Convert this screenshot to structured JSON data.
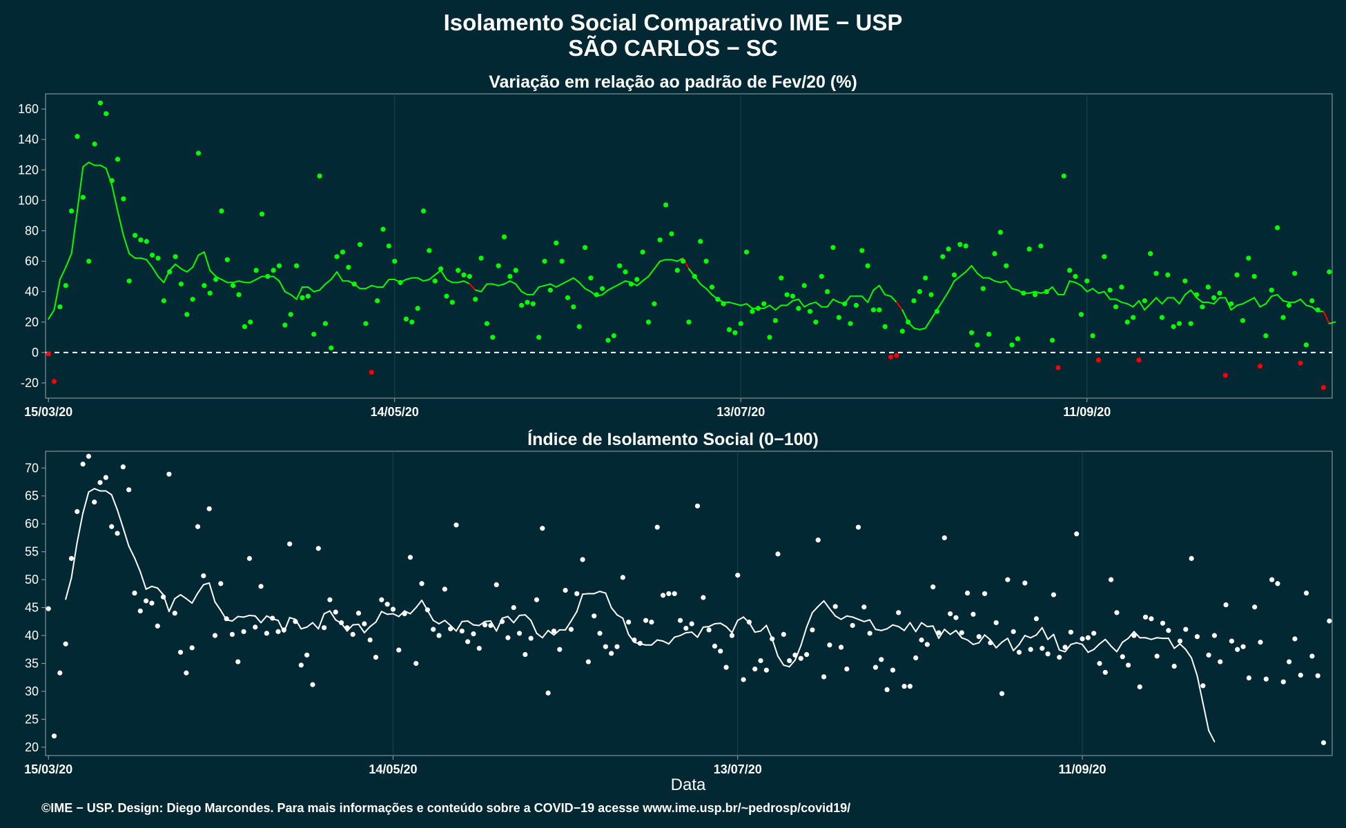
{
  "titles": {
    "main": "Isolamento Social Comparativo IME − USP",
    "location": "SÃO CARLOS − SC",
    "xlabel": "Data",
    "footer": "©IME − USP. Design: Diego Marcondes. Para mais informações e conteúdo sobre a COVID−19 acesse www.ime.usp.br/~pedrosp/covid19/"
  },
  "colors": {
    "background": "#022834",
    "positive": "#00ff00",
    "negative": "#ff0000",
    "index": "#ffffff",
    "zero_line": "#ffffff"
  },
  "chart_data": [
    {
      "type": "scatter",
      "title": "Variação em relação ao padrão de Fev/20 (%)",
      "xlabel": "",
      "ylabel": "",
      "x_start": "15/03/20",
      "x_end": "11/10/20",
      "xtick_labels": [
        "15/03/20",
        "14/05/20",
        "13/07/20",
        "11/09/20"
      ],
      "xtick_days": [
        0,
        60,
        120,
        180
      ],
      "ylim": [
        -30,
        170
      ],
      "yticks": [
        -20,
        0,
        20,
        40,
        60,
        80,
        100,
        120,
        140,
        160
      ],
      "zero_line": true,
      "grid": true,
      "series": [
        {
          "kind": "points",
          "values": [
            -1,
            -19,
            30,
            44,
            93,
            142,
            102,
            60,
            137,
            164,
            157,
            113,
            127,
            101,
            47,
            77,
            74,
            73,
            64,
            62,
            34,
            53,
            63,
            45,
            25,
            35,
            131,
            44,
            39,
            48,
            93,
            61,
            44,
            38,
            17,
            20,
            54,
            91,
            50,
            54,
            57,
            18,
            25,
            57,
            36,
            37,
            12,
            116,
            19,
            3,
            63,
            66,
            56,
            45,
            71,
            19,
            -13,
            34,
            81,
            70,
            60,
            46,
            22,
            20,
            29,
            93,
            67,
            47,
            55,
            37,
            33,
            54,
            51,
            50,
            35,
            62,
            19,
            10,
            57,
            76,
            50,
            54,
            31,
            33,
            32,
            10,
            60,
            41,
            72,
            60,
            36,
            30,
            17,
            69,
            49,
            38,
            42,
            8,
            11,
            57,
            53,
            45,
            48,
            66,
            20,
            32,
            74,
            97,
            78,
            54,
            60,
            20,
            50,
            73,
            60,
            43,
            35,
            32,
            15,
            13,
            19,
            66,
            27,
            29,
            32,
            10,
            21,
            49,
            38,
            37,
            29,
            44,
            27,
            20,
            50,
            40,
            69,
            23,
            32,
            19,
            31,
            67,
            57,
            28,
            28,
            17,
            -3,
            -2,
            14,
            20,
            34,
            40,
            49,
            38,
            27,
            63,
            68,
            51,
            71,
            70,
            13,
            5,
            42,
            12,
            65,
            79,
            57,
            5,
            9,
            39,
            68,
            38,
            70,
            40,
            8,
            -10,
            116,
            54,
            50,
            25,
            47,
            11,
            -5,
            63,
            41,
            30,
            43,
            20,
            23,
            -5,
            34,
            65,
            52,
            23,
            51,
            17,
            19,
            47,
            19,
            38,
            30,
            43,
            36,
            39,
            -15,
            32,
            51,
            21,
            62,
            50,
            -9,
            11,
            41,
            82,
            23,
            31,
            52,
            -7,
            5,
            34,
            28,
            -23,
            53
          ]
        },
        {
          "kind": "rolling_mean",
          "values": [
            22,
            28,
            48,
            56,
            65,
            93,
            122,
            125,
            123,
            123,
            121,
            110,
            93,
            77,
            65,
            62,
            62,
            61,
            56,
            50,
            46,
            54,
            58,
            55,
            53,
            56,
            64,
            66,
            54,
            50,
            48,
            46,
            46,
            47,
            46,
            46,
            48,
            50,
            50,
            50,
            47,
            40,
            38,
            35,
            43,
            43,
            40,
            41,
            45,
            48,
            53,
            47,
            47,
            45,
            42,
            42,
            44,
            43,
            43,
            48,
            48,
            46,
            48,
            49,
            49,
            47,
            48,
            51,
            54,
            48,
            46,
            46,
            47,
            45,
            41,
            40,
            45,
            45,
            44,
            45,
            47,
            45,
            40,
            38,
            38,
            43,
            44,
            45,
            43,
            45,
            47,
            49,
            46,
            42,
            40,
            37,
            38,
            41,
            43,
            45,
            47,
            46,
            44,
            47,
            50,
            55,
            60,
            61,
            61,
            60,
            62,
            55,
            50,
            45,
            42,
            38,
            35,
            33,
            33,
            32,
            31,
            32,
            29,
            29,
            29,
            31,
            28,
            31,
            31,
            34,
            35,
            30,
            32,
            33,
            30,
            30,
            35,
            33,
            32,
            37,
            37,
            37,
            33,
            41,
            44,
            38,
            37,
            33,
            28,
            20,
            16,
            15,
            16,
            22,
            28,
            34,
            40,
            47,
            50,
            53,
            57,
            52,
            49,
            49,
            47,
            46,
            47,
            42,
            41,
            39,
            39,
            40,
            39,
            40,
            43,
            38,
            38,
            47,
            46,
            44,
            40,
            42,
            39,
            40,
            35,
            35,
            33,
            32,
            30,
            34,
            28,
            32,
            36,
            32,
            36,
            36,
            32,
            38,
            41,
            36,
            33,
            33,
            32,
            36,
            36,
            28,
            31,
            32,
            34,
            36,
            30,
            32,
            37,
            38,
            34,
            33,
            33,
            35,
            31,
            30,
            27,
            27,
            19,
            20
          ]
        }
      ]
    },
    {
      "type": "scatter",
      "title": "Índice de Isolamento Social (0−100)",
      "xlabel": "Data",
      "ylabel": "",
      "x_start": "15/03/20",
      "x_end": "11/10/20",
      "xtick_labels": [
        "15/03/20",
        "14/05/20",
        "13/07/20",
        "11/09/20"
      ],
      "xtick_days": [
        0,
        60,
        120,
        180
      ],
      "ylim": [
        18.5,
        73
      ],
      "yticks": [
        20,
        25,
        30,
        35,
        40,
        45,
        50,
        55,
        60,
        65,
        70
      ],
      "grid": true,
      "series": [
        {
          "kind": "points",
          "values": [
            44.8,
            22,
            33.3,
            38.5,
            53.8,
            62.2,
            70.7,
            72.1,
            63.9,
            67.4,
            68.3,
            59.5,
            58.3,
            70.2,
            66.1,
            47.6,
            44.4,
            46.2,
            45.8,
            41.7,
            46.9,
            68.9,
            44.0,
            37.0,
            33.3,
            37.8,
            59.5,
            50.7,
            62.7,
            40.0,
            49.3,
            43.0,
            40.2,
            35.3,
            40.7,
            53.8,
            41.5,
            48.8,
            40.4,
            43.1,
            40.7,
            41.0,
            56.4,
            42.5,
            34.7,
            36.5,
            31.2,
            55.6,
            41.4,
            46.4,
            44.2,
            42.3,
            41.4,
            40.2,
            44.0,
            42.1,
            39.2,
            36.1,
            46.4,
            45.6,
            44.7,
            37.4,
            43.9,
            54.0,
            35.0,
            49.3,
            44.6,
            41.1,
            40.0,
            48.3,
            41.2,
            59.8,
            40.8,
            38.9,
            40.3,
            37.7,
            41.9,
            41.8,
            49.1,
            42.5,
            39.6,
            45.0,
            40.4,
            36.6,
            39.5,
            46.4,
            59.2,
            29.7,
            40.8,
            37.5,
            48.1,
            41.1,
            47.5,
            53.6,
            35.3,
            43.5,
            40.4,
            38.0,
            36.8,
            38.0,
            50.4,
            42.4,
            39.2,
            38.6,
            42.7,
            42.4,
            59.4,
            47.2,
            47.5,
            47.5,
            42.7,
            41.3,
            42.1,
            63.2,
            46.8,
            41.0,
            38.1,
            37.2,
            34.3,
            40.0,
            50.8,
            32.1,
            42.4,
            34.0,
            35.5,
            33.8,
            39.4,
            54.6,
            40.2,
            35.5,
            36.5,
            35.9,
            36.6,
            41.0,
            57.1,
            32.6,
            38.3,
            45.2,
            37.9,
            34.0,
            41.8,
            59.4,
            45.1,
            40.4,
            34.3,
            35.7,
            30.3,
            33.8,
            44.1,
            30.9,
            30.9,
            36.0,
            39.2,
            38.4,
            48.7,
            40.5,
            57.5,
            43.9,
            43.2,
            40.5,
            47.6,
            43.8,
            39.8,
            47.5,
            38.7,
            42.3,
            29.6,
            50.0,
            40.7,
            37.0,
            49.4,
            37.5,
            43.0,
            37.7,
            36.7,
            47.3,
            36.1,
            37.9,
            40.6,
            58.2,
            39.4,
            39.6,
            40.4,
            35.0,
            33.4,
            50.0,
            44.1,
            36.2,
            34.7,
            40.0,
            30.8,
            43.3,
            43.0,
            36.3,
            42.2,
            40.9,
            34.5,
            39.0,
            41.1,
            53.8,
            39.8,
            31.0,
            36.5,
            40.0,
            35.3,
            45.5,
            39.0,
            37.5,
            38.0,
            32.4,
            45.1,
            38.8,
            32.2,
            50.0,
            49.3,
            31.7,
            35.3,
            39.4,
            32.9,
            47.6,
            36.3,
            32.8,
            20.8,
            42.6
          ]
        },
        {
          "kind": "rolling_mean",
          "start_day": 3,
          "values": [
            46.5,
            50.3,
            56.7,
            61.9,
            65.7,
            66.3,
            65.9,
            65.9,
            65.2,
            62.5,
            59.3,
            56.0,
            53.9,
            51.4,
            48.3,
            48.8,
            48.5,
            47.3,
            44.3,
            46.6,
            47.3,
            46.6,
            45.8,
            47.6,
            49.1,
            49.4,
            46.0,
            44.5,
            42.8,
            42.6,
            43.4,
            43.3,
            43.6,
            43.5,
            42.3,
            43.5,
            43.0,
            42.7,
            40.6,
            43.2,
            42.9,
            41.2,
            41.5,
            42.3,
            41.2,
            43.9,
            44.4,
            42.8,
            42.2,
            40.8,
            41.9,
            42.0,
            40.5,
            41.6,
            42.4,
            44.3,
            43.8,
            43.9,
            43.4,
            44.4,
            43.9,
            45.0,
            46.3,
            44.5,
            42.7,
            42.1,
            42.7,
            41.8,
            40.8,
            42.5,
            42.6,
            41.9,
            41.8,
            42.5,
            42.6,
            40.8,
            43.1,
            43.4,
            42.3,
            43.6,
            43.7,
            42.7,
            40.4,
            39.6,
            40.9,
            40.1,
            41.0,
            41.0,
            42.6,
            44.3,
            47.4,
            47.5,
            47.5,
            47.9,
            47.6,
            45.0,
            43.7,
            43.1,
            40.2,
            38.8,
            38.5,
            38.3,
            38.3,
            39.2,
            39.0,
            38.5,
            39.7,
            40.0,
            40.5,
            40.6,
            39.7,
            41.5,
            41.6,
            42.1,
            42.2,
            41.6,
            40.5,
            42.7,
            43.3,
            42.3,
            40.6,
            40.8,
            41.8,
            39.4,
            36.3,
            34.7,
            34.4,
            35.6,
            38.2,
            41.5,
            44.1,
            45.2,
            46.2,
            44.8,
            43.5,
            42.9,
            43.5,
            43.3,
            42.9,
            42.5,
            42.8,
            41.1,
            40.9,
            41.2,
            41.9,
            41.6,
            40.9,
            42.3,
            40.7,
            42.3,
            41.6,
            41.7,
            39.5,
            41.1,
            40.2,
            40.9,
            39.6,
            39.2,
            38.4,
            38.7,
            40.1,
            39.2,
            37.8,
            38.8,
            39.5,
            37.3,
            38.4,
            40.0,
            39.6,
            40.1,
            41.4,
            39.3,
            40.2,
            37.4,
            37.1,
            38.4,
            38.7,
            38.4,
            37.0,
            37.5,
            38.5,
            39.3,
            38.1,
            37.1,
            38.8,
            39.5,
            40.7,
            39.6,
            39.6,
            39.3,
            39.6,
            39.5,
            39.5,
            37.7,
            38.5,
            37.5,
            36.0,
            32.8,
            27.9,
            23.0,
            21.0
          ]
        }
      ]
    }
  ]
}
